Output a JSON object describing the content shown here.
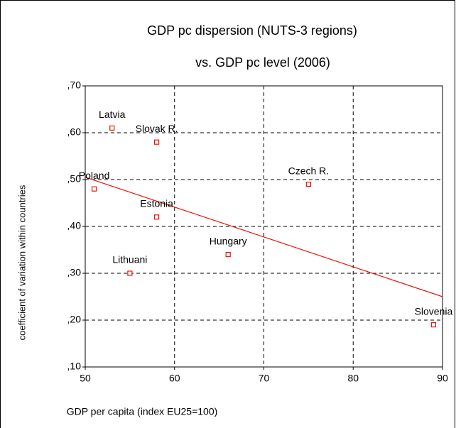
{
  "chart_data": {
    "type": "scatter",
    "title": "GDP pc dispersion (NUTS-3 regions)",
    "subtitle": "vs. GDP pc level (2006)",
    "x_label": "GDP per capita (index EU25=100)",
    "y_label": "coefficient of variation within countries",
    "color": "#e8140c",
    "labels": [
      "Latvia",
      "Slovak R.",
      "Poland",
      "Czech R.",
      "Estonia",
      "Hungary",
      "Lithuani",
      "Slovenia"
    ],
    "x": [
      53,
      58,
      51,
      75,
      58,
      66,
      55,
      89
    ],
    "values": [
      0.61,
      0.58,
      0.48,
      0.49,
      0.42,
      0.34,
      0.3,
      0.19
    ],
    "trendline": {
      "x": [
        50,
        90
      ],
      "y": [
        0.505,
        0.25
      ]
    },
    "xlim": [
      50,
      90
    ],
    "xticks": [
      50,
      60,
      70,
      80,
      90
    ],
    "ylim": [
      0.1,
      0.7
    ],
    "yticks": [
      {
        "value": 0.1,
        "label": ",10"
      },
      {
        "value": 0.2,
        "label": ",20"
      },
      {
        "value": 0.3,
        "label": ",30"
      },
      {
        "value": 0.4,
        "label": ",40"
      },
      {
        "value": 0.5,
        "label": ",50"
      },
      {
        "value": 0.6,
        "label": ",60"
      },
      {
        "value": 0.7,
        "label": ",70"
      }
    ],
    "grid": true
  }
}
